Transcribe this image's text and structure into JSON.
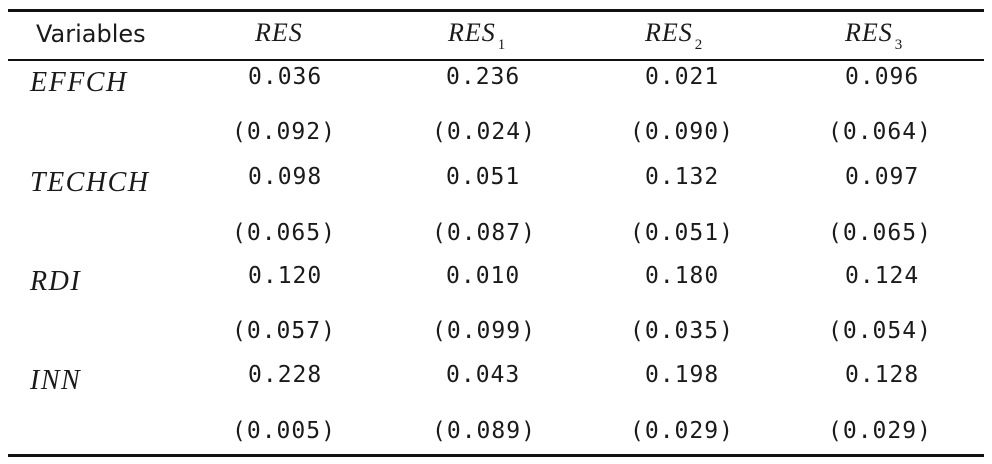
{
  "table": {
    "headers": [
      "Variables",
      "RES",
      "RES",
      "RES",
      "RES"
    ],
    "header_subscripts": [
      "",
      "",
      "1",
      "2",
      "3"
    ],
    "rows": [
      {
        "variable": "EFFCH",
        "coef": [
          "0.036",
          "0.236",
          "0.021",
          "0.096"
        ],
        "se": [
          "(0.092)",
          "(0.024)",
          "(0.090)",
          "(0.064)"
        ]
      },
      {
        "variable": "TECHCH",
        "coef": [
          "0.098",
          "0.051",
          "0.132",
          "0.097"
        ],
        "se": [
          "(0.065)",
          "(0.087)",
          "(0.051)",
          "(0.065)"
        ]
      },
      {
        "variable": "RDI",
        "coef": [
          "0.120",
          "0.010",
          "0.180",
          "0.124"
        ],
        "se": [
          "(0.057)",
          "(0.099)",
          "(0.035)",
          "(0.054)"
        ]
      },
      {
        "variable": "INN",
        "coef": [
          "0.228",
          "0.043",
          "0.198",
          "0.128"
        ],
        "se": [
          "(0.005)",
          "(0.089)",
          "(0.029)",
          "(0.029)"
        ]
      }
    ]
  }
}
